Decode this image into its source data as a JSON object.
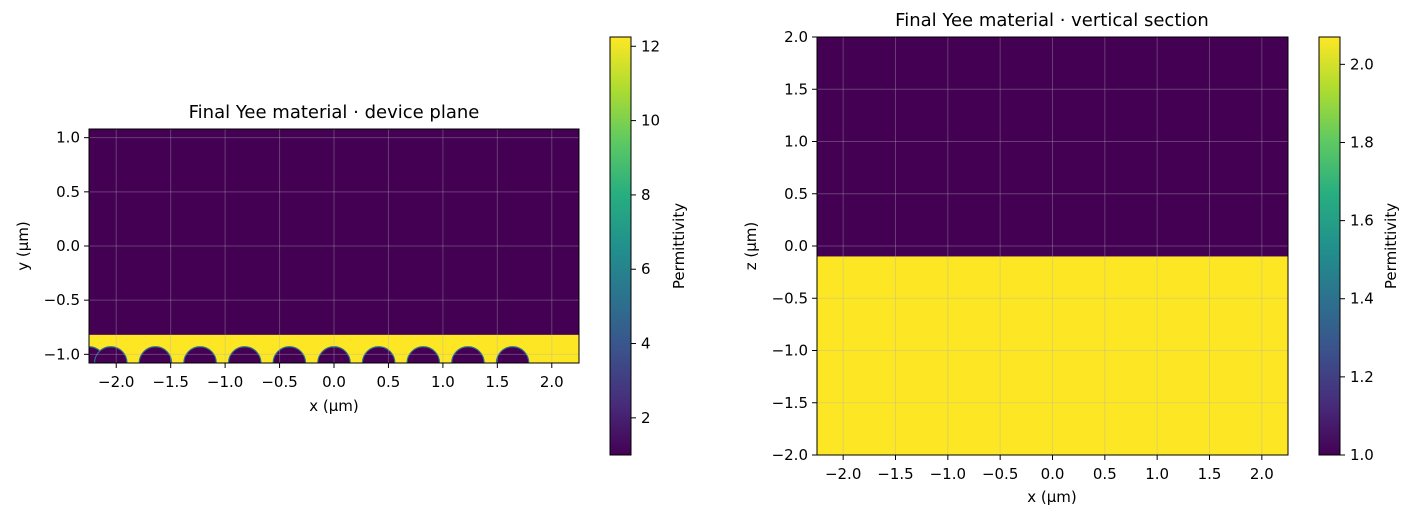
{
  "chart_data": [
    {
      "type": "heatmap",
      "title": "Final Yee material · device plane",
      "xlabel": "x (µm)",
      "ylabel": "y (µm)",
      "xlim": [
        -2.25,
        2.25
      ],
      "ylim": [
        -1.08,
        1.08
      ],
      "xticks": [
        -2.0,
        -1.5,
        -1.0,
        -0.5,
        0.0,
        0.5,
        1.0,
        1.5,
        2.0
      ],
      "xtick_labels": [
        "−2.0",
        "−1.5",
        "−1.0",
        "−0.5",
        "0.0",
        "0.5",
        "1.0",
        "1.5",
        "2.0"
      ],
      "yticks": [
        -1.0,
        -0.5,
        0.0,
        0.5,
        1.0
      ],
      "ytick_labels": [
        "−1.0",
        "−0.5",
        "0.0",
        "0.5",
        "1.0"
      ],
      "grid": true,
      "colormap": "viridis",
      "background_permittivity": 1.0,
      "regions": [
        {
          "shape": "rect",
          "x": [
            -2.25,
            2.25
          ],
          "y": [
            -1.08,
            -0.82
          ],
          "permittivity": 12.25
        }
      ],
      "holes": {
        "permittivity": 1.0,
        "center_y": -1.08,
        "radius": 0.15,
        "centers_x": [
          -2.25,
          -2.05,
          -1.64,
          -1.23,
          -0.82,
          -0.41,
          0.0,
          0.41,
          0.82,
          1.23,
          1.64
        ]
      },
      "colorbar": {
        "label": "Permittivity",
        "vmin": 1.0,
        "vmax": 12.25,
        "ticks": [
          2,
          4,
          6,
          8,
          10,
          12
        ],
        "tick_labels": [
          "2",
          "4",
          "6",
          "8",
          "10",
          "12"
        ]
      }
    },
    {
      "type": "heatmap",
      "title": "Final Yee material · vertical section",
      "xlabel": "x (µm)",
      "ylabel": "z (µm)",
      "xlim": [
        -2.25,
        2.25
      ],
      "ylim": [
        -2.0,
        2.0
      ],
      "xticks": [
        -2.0,
        -1.5,
        -1.0,
        -0.5,
        0.0,
        0.5,
        1.0,
        1.5,
        2.0
      ],
      "xtick_labels": [
        "−2.0",
        "−1.5",
        "−1.0",
        "−0.5",
        "0.0",
        "0.5",
        "1.0",
        "1.5",
        "2.0"
      ],
      "yticks": [
        -2.0,
        -1.5,
        -1.0,
        -0.5,
        0.0,
        0.5,
        1.0,
        1.5,
        2.0
      ],
      "ytick_labels": [
        "−2.0",
        "−1.5",
        "−1.0",
        "−0.5",
        "0.0",
        "0.5",
        "1.0",
        "1.5",
        "2.0"
      ],
      "grid": true,
      "colormap": "viridis",
      "background_permittivity": 1.0,
      "regions": [
        {
          "shape": "rect",
          "x": [
            -2.25,
            2.25
          ],
          "y": [
            -2.0,
            -0.1
          ],
          "permittivity": 2.07
        }
      ],
      "colorbar": {
        "label": "Permittivity",
        "vmin": 1.0,
        "vmax": 2.07,
        "ticks": [
          1.0,
          1.2,
          1.4,
          1.6,
          1.8,
          2.0
        ],
        "tick_labels": [
          "1.0",
          "1.2",
          "1.4",
          "1.6",
          "1.8",
          "2.0"
        ]
      }
    }
  ]
}
